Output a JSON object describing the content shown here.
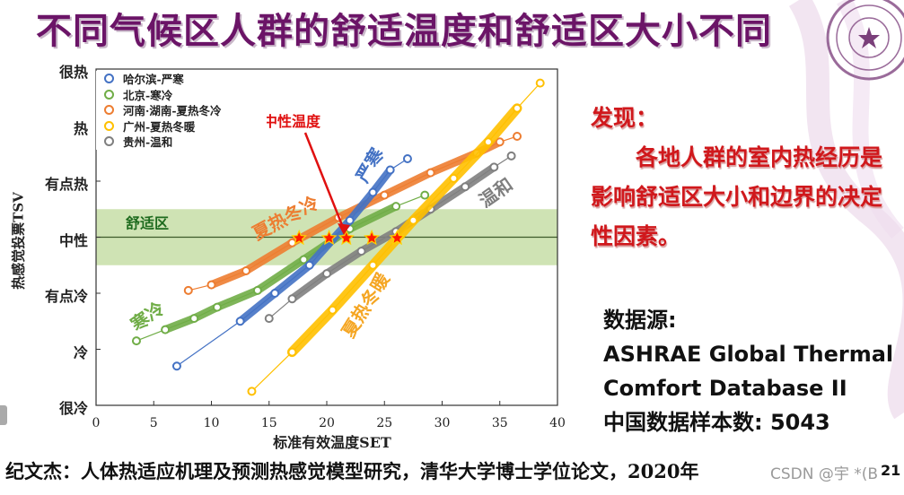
{
  "slide": {
    "title": "不同气候区人群的舒适温度和舒适区大小不同",
    "page_number": "21",
    "watermark": "CSDN @宇 *(B"
  },
  "finding": {
    "heading": "发现：",
    "body": "各地人群的室内热经历是影响舒适区大小和边界的决定性因素。"
  },
  "source": {
    "label": "数据源:",
    "line1": "ASHRAE Global Thermal",
    "line2": "Comfort Database II",
    "sample": "中国数据样本数: 5043"
  },
  "citation": "纪文杰：人体热适应机理及预测热感觉模型研究，清华大学博士学位论文，2020年",
  "colors": {
    "title": "#6b1467",
    "finding": "#d0181c",
    "comfort_zone": "#cfe3b4",
    "harbin": "#4472c4",
    "beijing": "#70ad47",
    "henan_hunan": "#ed7d31",
    "guangzhou": "#ffc000",
    "guizhou": "#7f7f7f",
    "star": "#ff1a00"
  },
  "chart_data": {
    "type": "scatter",
    "title": "不同气候区人群的舒适温度和舒适区大小不同",
    "xlabel": "标准有效温度SET",
    "ylabel": "热感觉投票TSV",
    "xlim": [
      0,
      40
    ],
    "ylim": [
      -3,
      3
    ],
    "x_ticks": [
      0,
      5,
      10,
      15,
      20,
      25,
      30,
      35,
      40
    ],
    "y_ticks": [
      {
        "value": 3,
        "label": "很热"
      },
      {
        "value": 2,
        "label": "热"
      },
      {
        "value": 1,
        "label": "有点热"
      },
      {
        "value": 0,
        "label": "中性"
      },
      {
        "value": -1,
        "label": "有点冷"
      },
      {
        "value": -2,
        "label": "冷"
      },
      {
        "value": -3,
        "label": "很冷"
      }
    ],
    "grid": false,
    "legend_position": "upper-left",
    "comfort_zone": {
      "label": "舒适区",
      "tsv_range": [
        -0.5,
        0.5
      ]
    },
    "annotations": [
      {
        "text": "中性温度",
        "type": "arrow-label"
      },
      {
        "text": "严寒",
        "series": "哈尔滨-严寒"
      },
      {
        "text": "寒冷",
        "series": "北京-寒冷"
      },
      {
        "text": "夏热冬冷",
        "series": "河南·湖南-夏热冬冷"
      },
      {
        "text": "夏热冬暖",
        "series": "广州-夏热冬暖"
      },
      {
        "text": "温和",
        "series": "贵州-温和"
      }
    ],
    "neutral_temperatures": [
      17.6,
      20.2,
      21.7,
      23.9,
      26.1
    ],
    "series": [
      {
        "name": "哈尔滨-严寒",
        "color": "#4472c4",
        "x": [
          7.0,
          12.5,
          15.5,
          18.5,
          22.0,
          24.0,
          25.5,
          27.0
        ],
        "y": [
          -2.3,
          -1.5,
          -1.0,
          -0.5,
          0.3,
          0.8,
          1.2,
          1.4
        ]
      },
      {
        "name": "北京-寒冷",
        "color": "#70ad47",
        "x": [
          3.5,
          6.0,
          8.5,
          10.5,
          14.0,
          18.0,
          22.0,
          26.0,
          28.5
        ],
        "y": [
          -1.85,
          -1.65,
          -1.45,
          -1.25,
          -0.95,
          -0.4,
          0.15,
          0.55,
          0.75
        ]
      },
      {
        "name": "河南·湖南-夏热冬冷",
        "color": "#ed7d31",
        "x": [
          8.0,
          10.0,
          13.0,
          17.0,
          21.0,
          25.0,
          29.0,
          33.0,
          35.0,
          36.5
        ],
        "y": [
          -0.95,
          -0.85,
          -0.6,
          -0.1,
          0.35,
          0.75,
          1.15,
          1.5,
          1.7,
          1.8
        ]
      },
      {
        "name": "广州-夏热冬暖",
        "color": "#ffc000",
        "x": [
          13.5,
          17.0,
          20.5,
          24.0,
          27.5,
          31.0,
          34.0,
          36.5,
          38.5
        ],
        "y": [
          -2.75,
          -2.05,
          -1.3,
          -0.5,
          0.3,
          1.05,
          1.7,
          2.3,
          2.75
        ]
      },
      {
        "name": "贵州-温和",
        "color": "#7f7f7f",
        "x": [
          15.0,
          17.0,
          20.0,
          23.0,
          26.0,
          29.0,
          32.0,
          34.5,
          36.0
        ],
        "y": [
          -1.45,
          -1.1,
          -0.65,
          -0.25,
          0.1,
          0.5,
          0.9,
          1.25,
          1.45
        ]
      }
    ]
  }
}
